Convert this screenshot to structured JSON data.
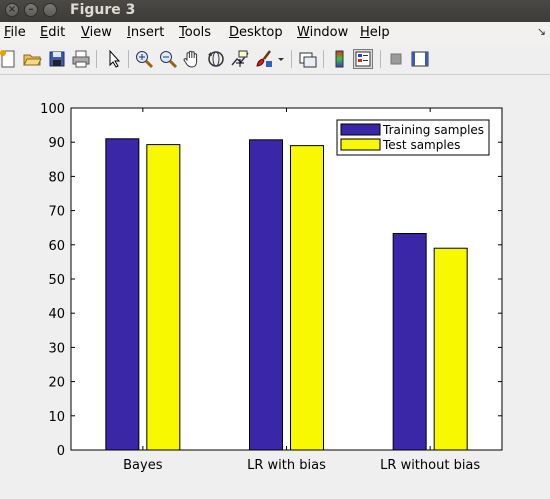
{
  "window": {
    "title": "Figure 3"
  },
  "menu": {
    "items": [
      {
        "u": "F",
        "rest": "ile"
      },
      {
        "u": "E",
        "rest": "dit"
      },
      {
        "u": "V",
        "rest": "iew"
      },
      {
        "u": "I",
        "rest": "nsert"
      },
      {
        "u": "T",
        "rest": "ools"
      },
      {
        "u": "D",
        "rest": "esktop"
      },
      {
        "u": "W",
        "rest": "indow"
      },
      {
        "u": "H",
        "rest": "elp"
      }
    ]
  },
  "toolbar": {
    "icons": [
      "new-figure-icon",
      "open-file-icon",
      "save-icon",
      "print-icon",
      "edit-plot-arrow-icon",
      "zoom-in-icon",
      "zoom-out-icon",
      "pan-hand-icon",
      "rotate-3d-icon",
      "data-cursor-icon",
      "brush-icon",
      "dropdown-arrow-icon",
      "link-plot-icon",
      "colorbar-icon",
      "legend-icon",
      "hide-plot-tools-icon",
      "show-plot-tools-icon"
    ]
  },
  "chart_data": {
    "type": "bar",
    "categories": [
      "Bayes",
      "LR with bias",
      "LR without bias"
    ],
    "series": [
      {
        "name": "Training samples",
        "values": [
          91,
          90.7,
          63.3
        ],
        "color": "#3a27a8"
      },
      {
        "name": "Test samples",
        "values": [
          89.3,
          89,
          59
        ],
        "color": "#f8f800"
      }
    ],
    "ylim": [
      0,
      100
    ],
    "yticks": [
      0,
      10,
      20,
      30,
      40,
      50,
      60,
      70,
      80,
      90,
      100
    ],
    "legend_position": "top-right",
    "grid": false,
    "xlabel": "",
    "ylabel": "",
    "title": ""
  }
}
